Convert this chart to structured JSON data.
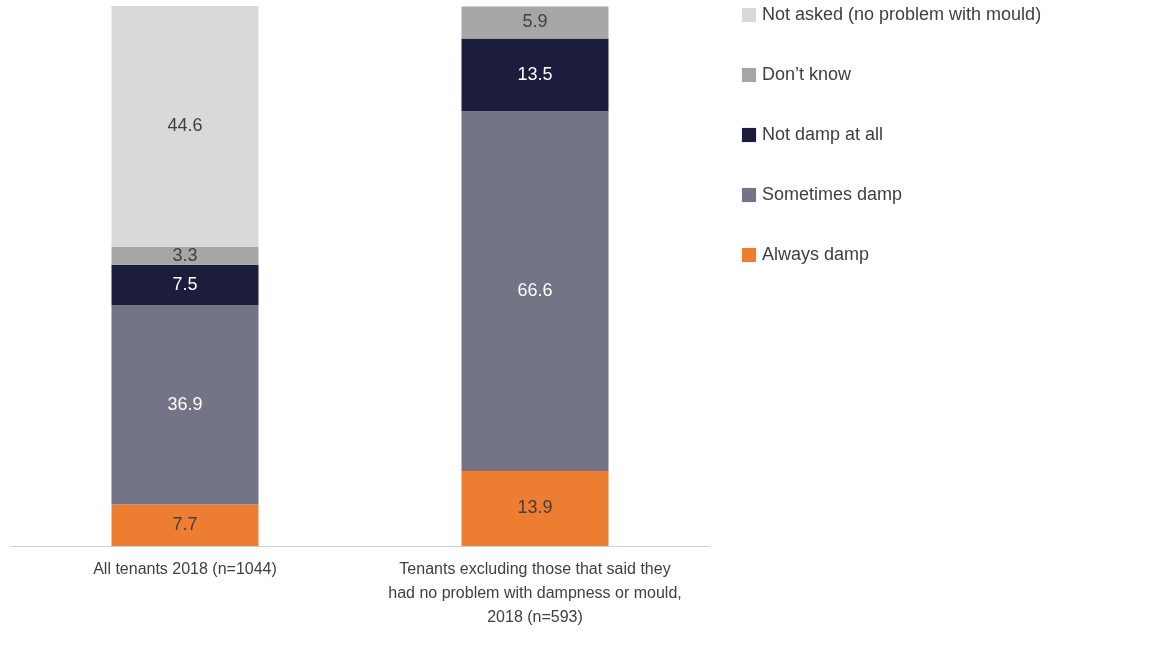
{
  "chart_data": {
    "type": "bar",
    "stacked": true,
    "data_labels": true,
    "legend": "right",
    "categories": [
      "All tenants 2018 (n=1044)",
      "Tenants excluding those that said they had no problem with dampness or mould, 2018 (n=593)"
    ],
    "series": [
      {
        "name": "Always damp",
        "color": "#ed7d31",
        "values": [
          7.7,
          13.9
        ]
      },
      {
        "name": "Sometimes damp",
        "color": "#747487",
        "values": [
          36.9,
          66.6
        ]
      },
      {
        "name": "Not damp at all",
        "color": "#1c1c3c",
        "values": [
          7.5,
          13.5
        ]
      },
      {
        "name": "Don’t know",
        "color": "#a6a6a6",
        "values": [
          3.3,
          5.9
        ]
      },
      {
        "name": "Not asked (no problem with mould)",
        "color": "#d9d9d9",
        "values": [
          44.6,
          null
        ]
      }
    ]
  }
}
